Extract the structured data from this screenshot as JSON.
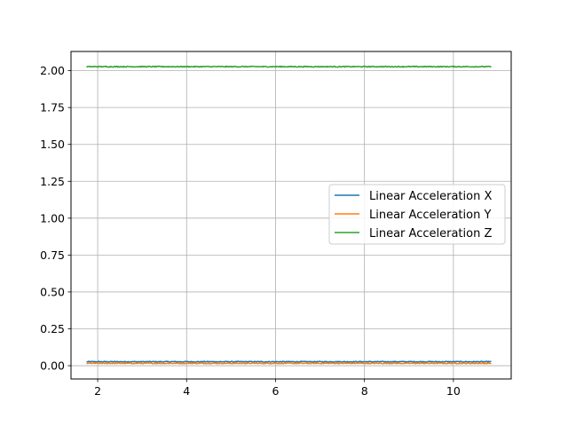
{
  "chart_data": {
    "type": "line",
    "title": "",
    "xlabel": "",
    "ylabel": "",
    "xlim": [
      1.4,
      11.3
    ],
    "ylim": [
      -0.09,
      2.13
    ],
    "x_ticks": [
      2,
      4,
      6,
      8,
      10
    ],
    "x_tick_labels": [
      "2",
      "4",
      "6",
      "8",
      "10"
    ],
    "y_ticks": [
      0.0,
      0.25,
      0.5,
      0.75,
      1.0,
      1.25,
      1.5,
      1.75,
      2.0
    ],
    "y_tick_labels": [
      "0.00",
      "0.25",
      "0.50",
      "0.75",
      "1.00",
      "1.25",
      "1.50",
      "1.75",
      "2.00"
    ],
    "grid": true,
    "legend_position": "center-right",
    "x_range": [
      1.75,
      10.85
    ],
    "series": [
      {
        "name": "Linear Acceleration X",
        "color": "#1f77b4",
        "mean": 0.027,
        "noise": 0.003
      },
      {
        "name": "Linear Acceleration Y",
        "color": "#ff7f0e",
        "mean": 0.016,
        "noise": 0.003
      },
      {
        "name": "Linear Acceleration Z",
        "color": "#2ca02c",
        "mean": 2.027,
        "noise": 0.003
      }
    ]
  }
}
